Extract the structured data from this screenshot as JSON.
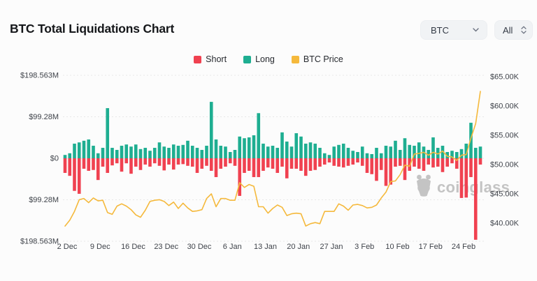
{
  "header": {
    "title": "BTC Total Liquidations Chart",
    "symbol_dropdown": {
      "value": "BTC"
    },
    "range_dropdown": {
      "value": "All"
    }
  },
  "legend": {
    "items": [
      {
        "label": "Short",
        "color": "#f04150"
      },
      {
        "label": "Long",
        "color": "#1eae91"
      },
      {
        "label": "BTC Price",
        "color": "#f5b93c"
      }
    ]
  },
  "watermark": {
    "text": "coinglass"
  },
  "chart_data": {
    "type": "bar",
    "subtype": "bidirectional daily liquidation bars with BTC price line overlay",
    "title": "BTC Total Liquidations Chart",
    "date_range": "2 Dec - 28 Feb",
    "num_days": 89,
    "legend_position": "top-center",
    "grid": "horizontal-dotted",
    "x_tick_labels": [
      "2 Dec",
      "9 Dec",
      "16 Dec",
      "23 Dec",
      "30 Dec",
      "6 Jan",
      "13 Jan",
      "20 Jan",
      "27 Jan",
      "3 Feb",
      "10 Feb",
      "17 Feb",
      "24 Feb"
    ],
    "x_tick_indices": [
      0,
      7,
      14,
      21,
      28,
      35,
      42,
      49,
      56,
      63,
      70,
      77,
      84
    ],
    "y_left_axis": {
      "labels": [
        "$198.563M",
        "$99.28M",
        "$0",
        "$99.28M",
        "$198.563M"
      ],
      "unit": "USD liquidations (M), long up / short down",
      "max": 198.563
    },
    "y_right_axis": {
      "labels": [
        "$65.00K",
        "$60.00K",
        "$55.00K",
        "$50.00K",
        "$45.00K",
        "$40.00K"
      ],
      "unit": "BTC price (K USD)",
      "min": 40,
      "max": 65
    },
    "series": [
      {
        "name": "Short",
        "type": "bar",
        "direction": "down",
        "color": "#f04150",
        "unit": "$M",
        "values": [
          35,
          42,
          78,
          85,
          25,
          30,
          28,
          52,
          20,
          35,
          17,
          12,
          32,
          12,
          37,
          20,
          28,
          15,
          20,
          12,
          18,
          29,
          15,
          27,
          15,
          14,
          18,
          20,
          35,
          25,
          18,
          30,
          45,
          25,
          20,
          12,
          18,
          90,
          35,
          30,
          45,
          45,
          30,
          22,
          25,
          35,
          20,
          48,
          25,
          25,
          30,
          42,
          30,
          28,
          20,
          15,
          10,
          18,
          20,
          22,
          18,
          15,
          10,
          18,
          35,
          38,
          54,
          28,
          66,
          63,
          20,
          18,
          52,
          30,
          20,
          25,
          30,
          15,
          22,
          20,
          33,
          20,
          12,
          25,
          95,
          94,
          45,
          195,
          15
        ]
      },
      {
        "name": "Long",
        "type": "bar",
        "direction": "up",
        "color": "#1eae91",
        "unit": "$M",
        "values": [
          8,
          12,
          35,
          38,
          42,
          45,
          30,
          12,
          25,
          120,
          25,
          20,
          30,
          33,
          28,
          33,
          22,
          25,
          18,
          25,
          38,
          28,
          25,
          33,
          30,
          32,
          42,
          30,
          25,
          20,
          30,
          135,
          45,
          30,
          28,
          15,
          20,
          52,
          48,
          50,
          55,
          108,
          35,
          28,
          30,
          25,
          62,
          40,
          28,
          60,
          52,
          35,
          38,
          35,
          25,
          12,
          8,
          28,
          32,
          35,
          25,
          18,
          15,
          28,
          12,
          10,
          25,
          12,
          30,
          28,
          42,
          20,
          48,
          32,
          30,
          38,
          28,
          20,
          50,
          25,
          30,
          15,
          18,
          15,
          22,
          35,
          85,
          25,
          28
        ]
      },
      {
        "name": "BTC Price",
        "type": "line",
        "color": "#f5b93c",
        "unit": "$K",
        "values": [
          39.5,
          40.5,
          42.0,
          44.0,
          44.2,
          43.5,
          44.3,
          43.8,
          43.9,
          41.8,
          41.5,
          42.9,
          43.3,
          42.9,
          42.3,
          41.4,
          41.0,
          42.2,
          43.7,
          43.9,
          44.0,
          43.7,
          43.0,
          43.6,
          42.5,
          43.4,
          42.6,
          42.0,
          42.1,
          42.3,
          44.2,
          45.0,
          42.8,
          44.2,
          44.2,
          43.9,
          43.9,
          46.9,
          46.1,
          46.6,
          46.3,
          42.8,
          42.8,
          41.7,
          42.5,
          43.1,
          42.7,
          41.3,
          41.6,
          41.7,
          41.6,
          39.5,
          39.9,
          40.1,
          39.9,
          42.0,
          42.0,
          42.0,
          43.3,
          42.9,
          42.2,
          43.1,
          43.2,
          43.0,
          42.6,
          42.7,
          43.1,
          44.3,
          45.3,
          47.1,
          47.2,
          48.3,
          49.9,
          49.7,
          51.8,
          51.9,
          52.1,
          51.6,
          52.1,
          51.8,
          52.3,
          51.4,
          51.3,
          50.7,
          51.6,
          51.7,
          54.5,
          57.0,
          62.5
        ]
      }
    ]
  }
}
